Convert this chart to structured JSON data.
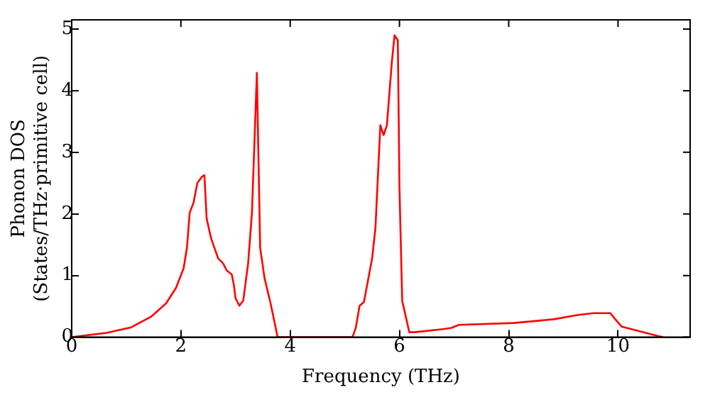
{
  "chart_data": {
    "type": "line",
    "xlabel": "Frequency (THz)",
    "ylabel": "Phonon DOS\n(States/THz·primitive cell)",
    "xlim": [
      0,
      11.32
    ],
    "ylim": [
      0,
      5.15
    ],
    "xticks": [
      0,
      2,
      4,
      6,
      8,
      10
    ],
    "yticks": [
      0,
      1,
      2,
      3,
      4,
      5
    ],
    "grid": false,
    "legend": false,
    "marker": "none",
    "line_style": "solid",
    "x": [
      0,
      0.64,
      1.09,
      1.45,
      1.73,
      1.91,
      2.05,
      2.11,
      2.16,
      2.23,
      2.3,
      2.38,
      2.43,
      2.47,
      2.55,
      2.68,
      2.77,
      2.84,
      2.93,
      2.97,
      3.0,
      3.07,
      3.14,
      3.23,
      3.3,
      3.39,
      3.45,
      3.53,
      3.64,
      3.77,
      5.14,
      5.2,
      5.27,
      5.35,
      5.5,
      5.56,
      5.65,
      5.71,
      5.77,
      5.86,
      5.91,
      5.97,
      6.0,
      6.05,
      6.18,
      6.27,
      6.8,
      6.95,
      7.09,
      8.09,
      8.82,
      9.27,
      9.55,
      9.86,
      9.95,
      10.07,
      10.72,
      10.82
    ],
    "series": [
      {
        "color": "#ff0000",
        "values": [
          0,
          0.07,
          0.16,
          0.33,
          0.55,
          0.8,
          1.12,
          1.45,
          2.02,
          2.18,
          2.5,
          2.6,
          2.63,
          1.93,
          1.61,
          1.28,
          1.2,
          1.08,
          1.02,
          0.84,
          0.63,
          0.51,
          0.59,
          1.2,
          2.02,
          4.29,
          1.45,
          0.96,
          0.55,
          0,
          0,
          0.15,
          0.51,
          0.57,
          1.28,
          1.77,
          3.44,
          3.28,
          3.44,
          4.46,
          4.9,
          4.82,
          2.42,
          0.59,
          0.08,
          0.08,
          0.13,
          0.15,
          0.2,
          0.23,
          0.29,
          0.36,
          0.39,
          0.39,
          0.29,
          0.17,
          0.02,
          0
        ]
      }
    ]
  }
}
